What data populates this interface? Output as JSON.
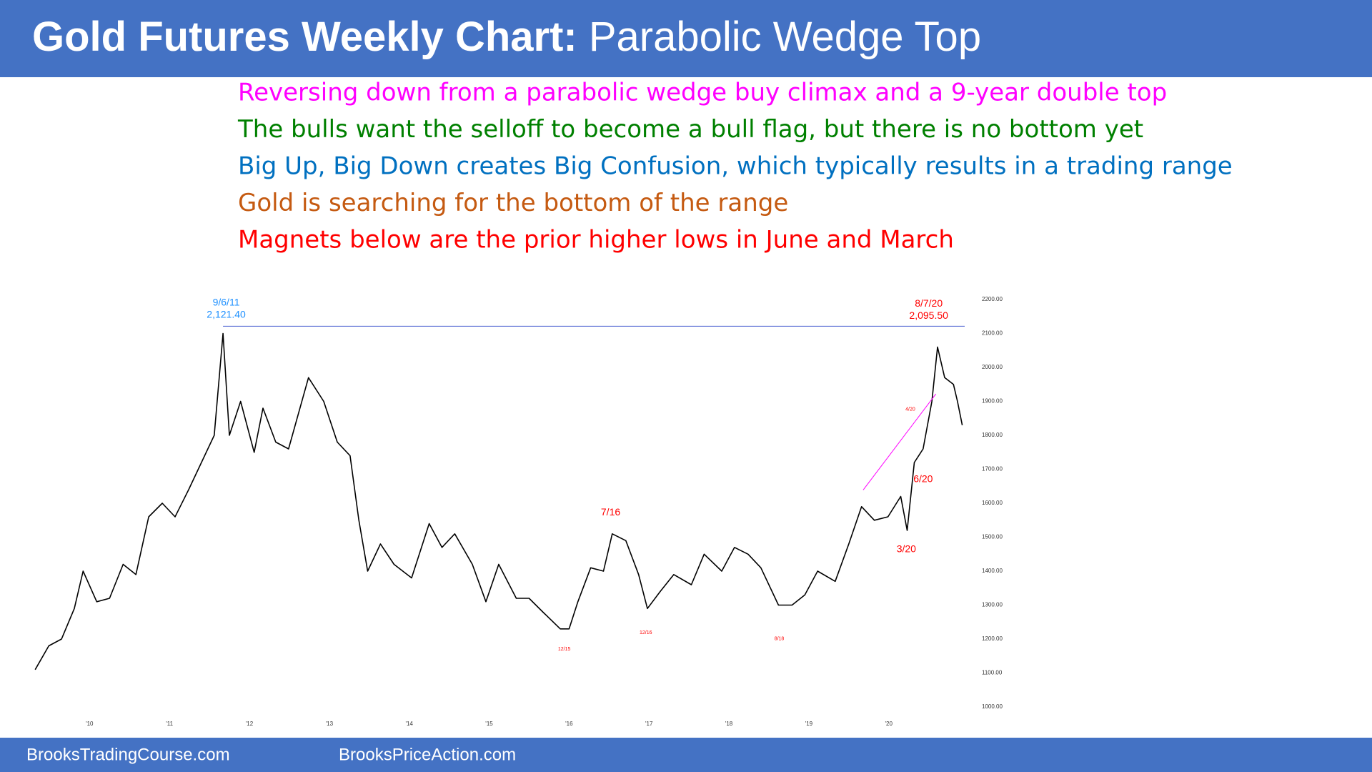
{
  "header": {
    "title_bold": "Gold Futures Weekly Chart:",
    "title_rest": "Parabolic Wedge Top"
  },
  "notes": [
    {
      "text": "Reversing down from a parabolic wedge buy climax and a 9-year double top",
      "color": "#ff00ff"
    },
    {
      "text": "The bulls want the selloff to become a bull flag, but there is no bottom yet",
      "color": "#008000"
    },
    {
      "text": "Big Up, Big Down creates Big Confusion, which typically results in a trading range",
      "color": "#0070c0"
    },
    {
      "text": "Gold is searching for the bottom of the range",
      "color": "#c55a11"
    },
    {
      "text": "Magnets below are the prior higher lows in June and March",
      "color": "#ff0000"
    }
  ],
  "footer": {
    "left": "BrooksTradingCourse.com",
    "right": "BrooksPriceAction.com"
  },
  "chart_data": {
    "type": "line",
    "color": "#000000",
    "x": [
      2009.32,
      2009.49,
      2009.65,
      2009.81,
      2009.92,
      2010.09,
      2010.25,
      2010.42,
      2010.58,
      2010.74,
      2010.91,
      2011.07,
      2011.24,
      2011.4,
      2011.56,
      2011.67,
      2011.75,
      2011.89,
      2012.06,
      2012.17,
      2012.33,
      2012.49,
      2012.74,
      2012.93,
      2013.1,
      2013.26,
      2013.37,
      2013.48,
      2013.64,
      2013.81,
      2014.03,
      2014.25,
      2014.41,
      2014.57,
      2014.79,
      2014.96,
      2015.12,
      2015.34,
      2015.5,
      2015.67,
      2015.89,
      2016.0,
      2016.11,
      2016.27,
      2016.43,
      2016.54,
      2016.71,
      2016.87,
      2016.98,
      2017.14,
      2017.31,
      2017.53,
      2017.69,
      2017.91,
      2018.07,
      2018.24,
      2018.4,
      2018.62,
      2018.79,
      2018.95,
      2019.11,
      2019.33,
      2019.5,
      2019.66,
      2019.82,
      2019.99,
      2020.15,
      2020.23,
      2020.32,
      2020.43,
      2020.54,
      2020.61,
      2020.7,
      2020.81,
      2020.86,
      2020.92
    ],
    "values": [
      1110,
      1180,
      1200,
      1290,
      1400,
      1310,
      1320,
      1420,
      1390,
      1560,
      1600,
      1560,
      1640,
      1720,
      1800,
      2100,
      1800,
      1900,
      1750,
      1880,
      1780,
      1760,
      1970,
      1900,
      1780,
      1740,
      1550,
      1400,
      1480,
      1420,
      1380,
      1540,
      1470,
      1510,
      1420,
      1310,
      1420,
      1320,
      1320,
      1280,
      1230,
      1230,
      1310,
      1410,
      1400,
      1510,
      1490,
      1390,
      1290,
      1340,
      1390,
      1360,
      1450,
      1400,
      1470,
      1450,
      1410,
      1300,
      1300,
      1330,
      1400,
      1370,
      1480,
      1590,
      1550,
      1560,
      1620,
      1520,
      1720,
      1760,
      1900,
      2060,
      1970,
      1950,
      1900,
      1830
    ],
    "xlim": [
      2009.3,
      2020.95
    ],
    "ylim": [
      1000,
      2200
    ],
    "xticks": [
      {
        "value": 2010,
        "label": "'10"
      },
      {
        "value": 2011,
        "label": "'11"
      },
      {
        "value": 2012,
        "label": "'12"
      },
      {
        "value": 2013,
        "label": "'13"
      },
      {
        "value": 2014,
        "label": "'14"
      },
      {
        "value": 2015,
        "label": "'15"
      },
      {
        "value": 2016,
        "label": "'16"
      },
      {
        "value": 2017,
        "label": "'17"
      },
      {
        "value": 2018,
        "label": "'18"
      },
      {
        "value": 2019,
        "label": "'19"
      },
      {
        "value": 2020,
        "label": "'20"
      }
    ],
    "yticks": [
      {
        "value": 1000,
        "label": "1000.00"
      },
      {
        "value": 1100,
        "label": "1100.00"
      },
      {
        "value": 1200,
        "label": "1200.00"
      },
      {
        "value": 1300,
        "label": "1300.00"
      },
      {
        "value": 1400,
        "label": "1400.00"
      },
      {
        "value": 1500,
        "label": "1500.00"
      },
      {
        "value": 1600,
        "label": "1600.00"
      },
      {
        "value": 1700,
        "label": "1700.00"
      },
      {
        "value": 1800,
        "label": "1800.00"
      },
      {
        "value": 1900,
        "label": "1900.00"
      },
      {
        "value": 2000,
        "label": "2000.00"
      },
      {
        "value": 2100,
        "label": "2100.00"
      },
      {
        "value": 2200,
        "label": "2200.00"
      }
    ],
    "resistance": {
      "y": 2121.4,
      "x": [
        2011.67,
        2020.95
      ],
      "color": "#4a5fd0"
    },
    "wedge_line": {
      "x": [
        2019.68,
        2020.59
      ],
      "y": [
        1639,
        1922
      ],
      "color": "#ff00ff"
    },
    "annotations": [
      {
        "text": "9/6/11",
        "x": 2011.71,
        "y": 2190,
        "color": "#1e90ff",
        "size": "large"
      },
      {
        "text": "2,121.40",
        "x": 2011.71,
        "y": 2154,
        "color": "#1e90ff",
        "size": "large"
      },
      {
        "text": "8/7/20",
        "x": 2020.5,
        "y": 2187,
        "color": "#ff0000",
        "size": "large"
      },
      {
        "text": "2,095.50",
        "x": 2020.5,
        "y": 2151,
        "color": "#ff0000",
        "size": "large"
      },
      {
        "text": "7/16",
        "x": 2016.52,
        "y": 1572,
        "color": "#ff0000",
        "size": "large"
      },
      {
        "text": "12/15",
        "x": 2015.94,
        "y": 1170,
        "color": "#ff0000",
        "size": "small"
      },
      {
        "text": "12/16",
        "x": 2016.96,
        "y": 1219,
        "color": "#ff0000",
        "size": "small"
      },
      {
        "text": "8/18",
        "x": 2018.63,
        "y": 1201,
        "color": "#ff0000",
        "size": "small"
      },
      {
        "text": "4/20",
        "x": 2020.27,
        "y": 1876,
        "color": "#ff0000",
        "size": "small"
      },
      {
        "text": "6/20",
        "x": 2020.43,
        "y": 1670,
        "color": "#ff0000",
        "size": "large"
      },
      {
        "text": "3/20",
        "x": 2020.22,
        "y": 1464,
        "color": "#ff0000",
        "size": "large"
      }
    ]
  }
}
